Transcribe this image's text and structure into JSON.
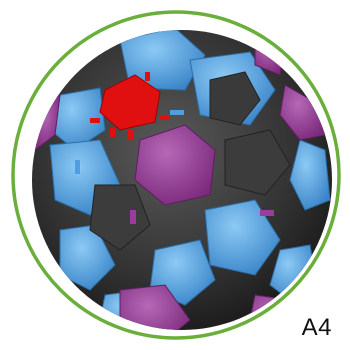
{
  "label": "A4",
  "colors": {
    "background": "#ffffff",
    "ring": "#6aae3b",
    "ball_dark": "#3a3a3a",
    "blue": "#4f9fe0",
    "magenta": "#9a3c9a",
    "red": "#e01010"
  }
}
